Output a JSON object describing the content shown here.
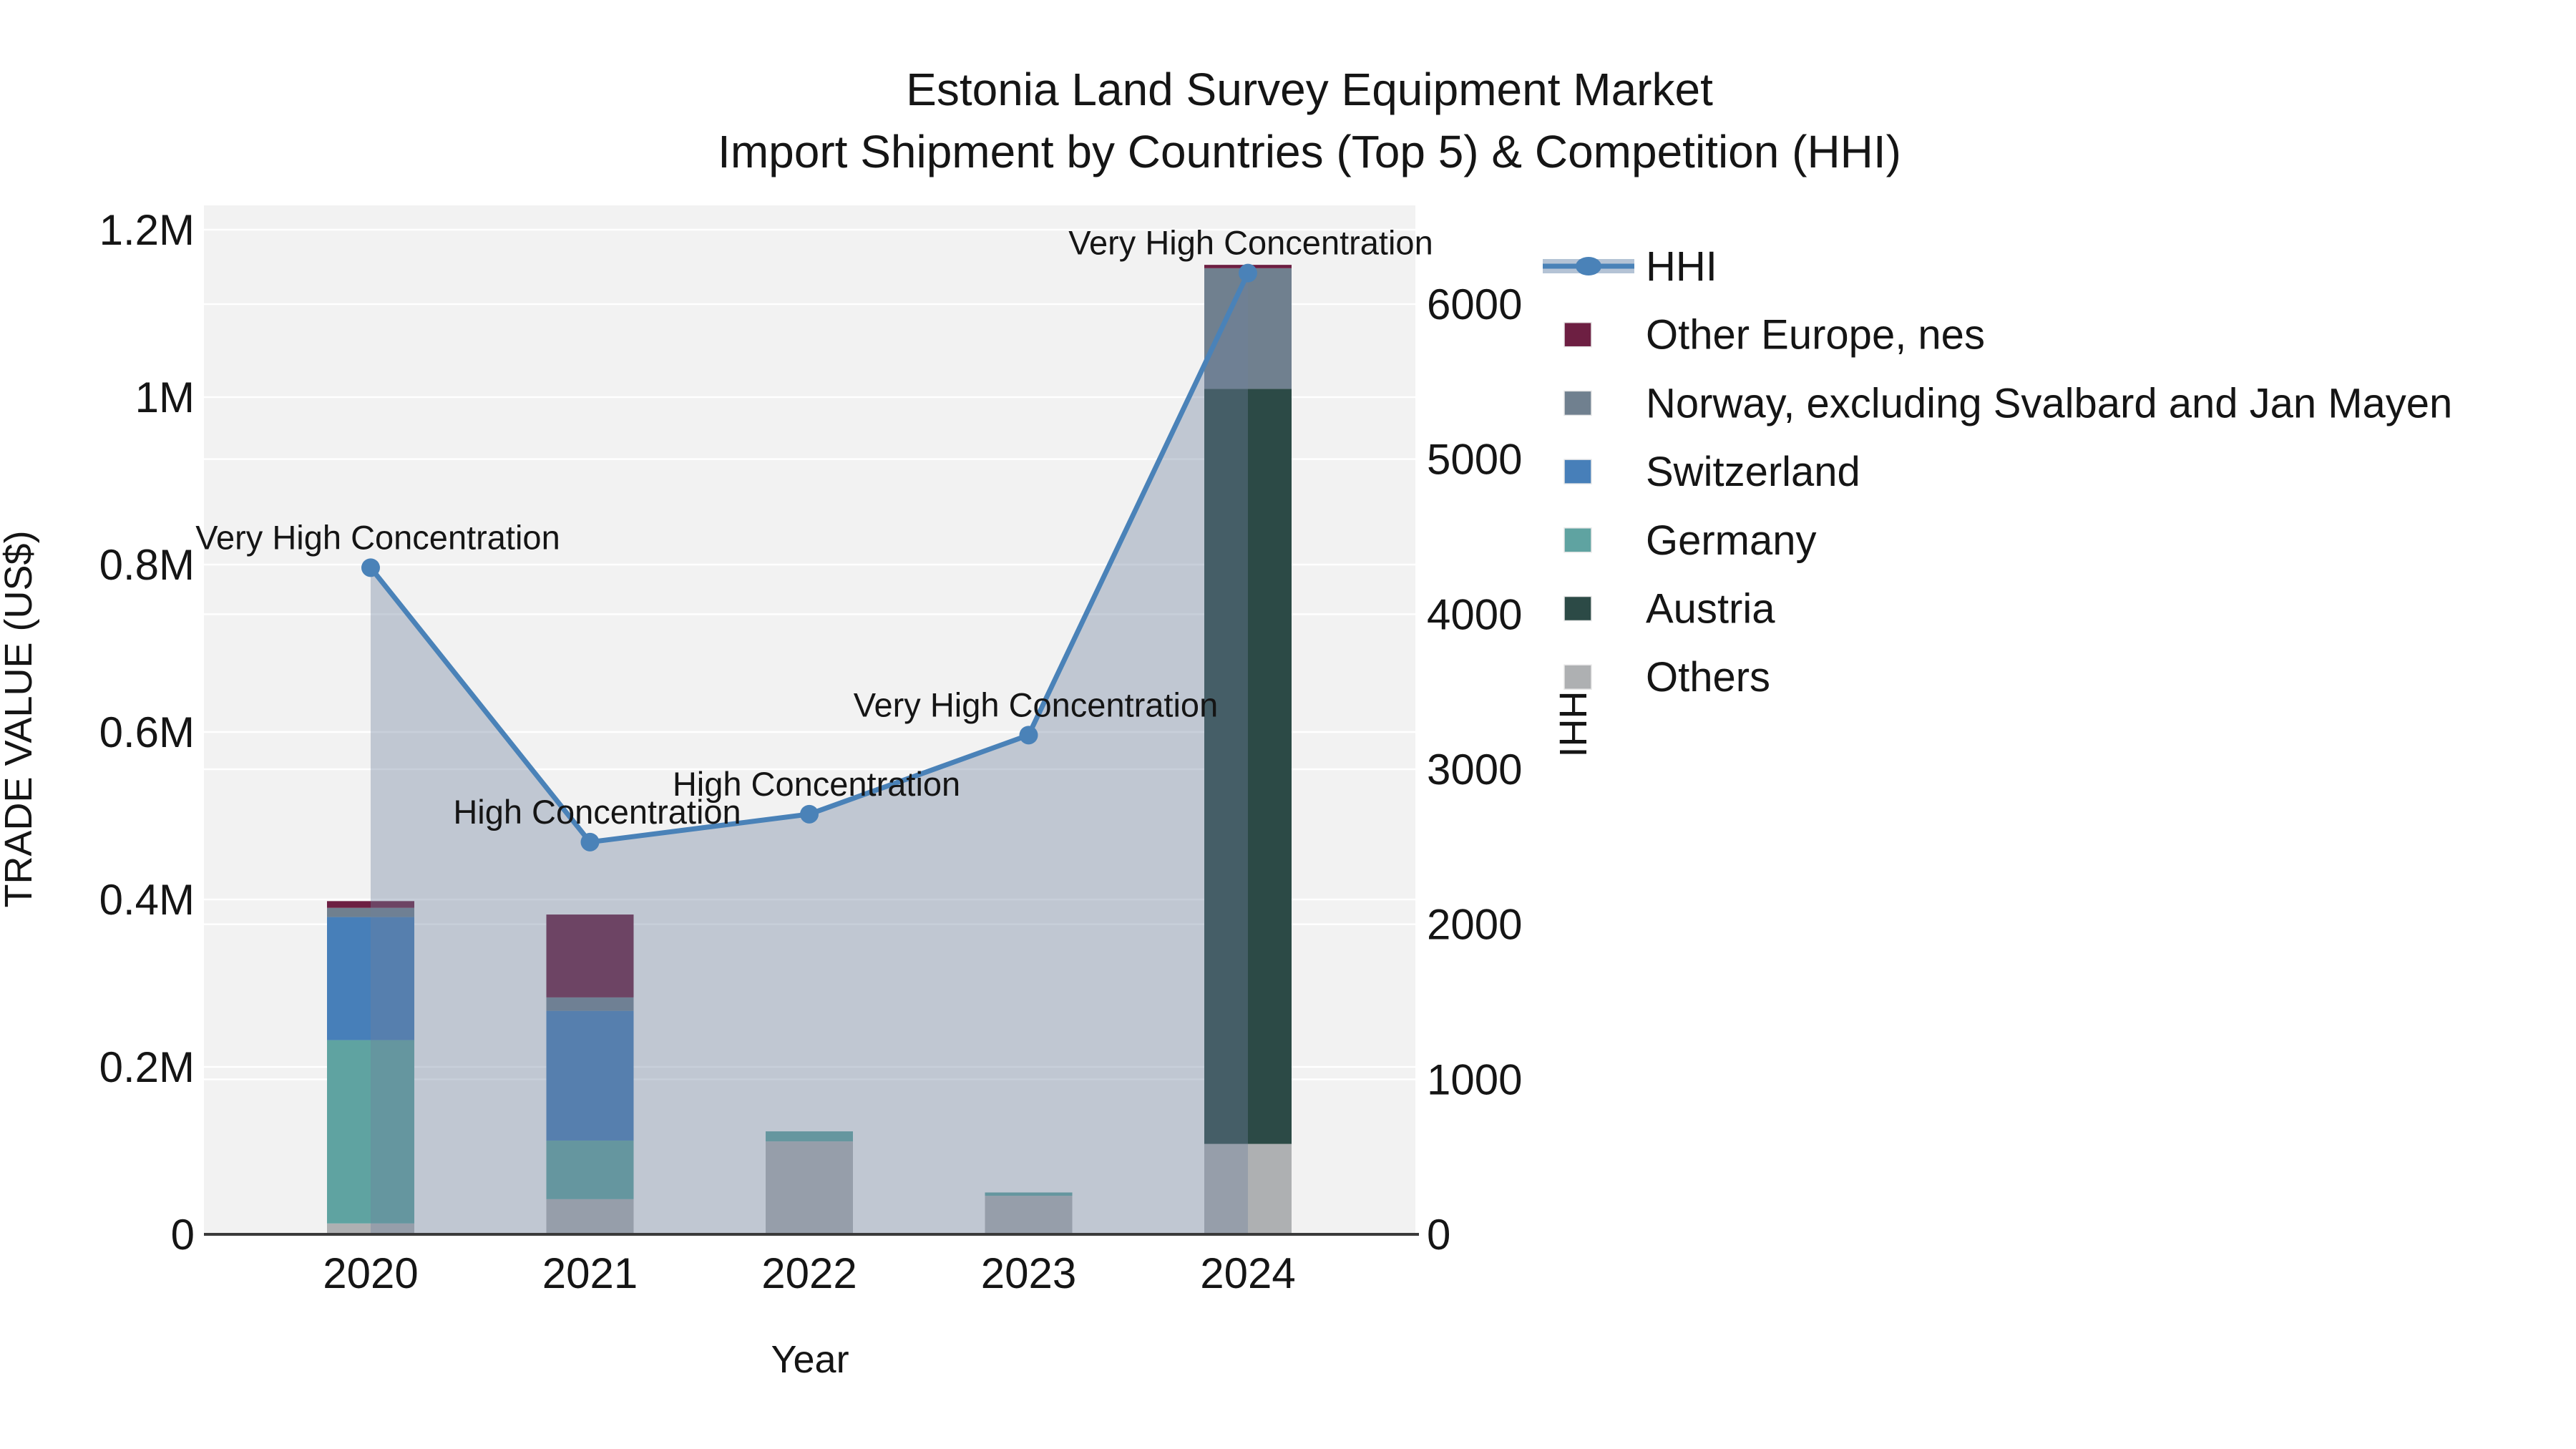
{
  "title": {
    "line1": "Estonia Land Survey Equipment Market",
    "line2": "Import Shipment by Countries (Top 5) & Competition (HHI)"
  },
  "chart_data": {
    "type": "bar+line combo (stacked bars on left axis, HHI line with shaded area on right axis)",
    "x_label": "Year",
    "x_categories": [
      "2020",
      "2021",
      "2022",
      "2023",
      "2024"
    ],
    "left_axis": {
      "label": "TRADE VALUE (US$)",
      "min": 0,
      "max": 1200000,
      "tick_values": [
        0,
        200000,
        400000,
        600000,
        800000,
        1000000,
        1200000
      ],
      "tick_labels": [
        "0",
        "0.2M",
        "0.4M",
        "0.6M",
        "0.8M",
        "1M",
        "1.2M"
      ]
    },
    "right_axis": {
      "label": "HHI",
      "min": 0,
      "max": 6635,
      "tick_values": [
        0,
        1000,
        2000,
        3000,
        4000,
        5000,
        6000
      ],
      "tick_labels": [
        "0",
        "1000",
        "2000",
        "3000",
        "4000",
        "5000",
        "6000"
      ]
    },
    "bar_series_bottom_to_top": [
      {
        "name": "Others",
        "color": "#aeb0b2",
        "values": [
          13000,
          42000,
          111000,
          46000,
          108000
        ]
      },
      {
        "name": "Austria",
        "color": "#2c4a46",
        "values": [
          0,
          0,
          0,
          0,
          902000
        ]
      },
      {
        "name": "Germany",
        "color": "#5fa3a1",
        "values": [
          219000,
          70000,
          12000,
          4000,
          0
        ]
      },
      {
        "name": "Switzerland",
        "color": "#477fb9",
        "values": [
          147000,
          155000,
          0,
          0,
          0
        ]
      },
      {
        "name": "Norway, excluding Svalbard and Jan Mayen",
        "color": "#70808f",
        "values": [
          11000,
          16000,
          0,
          0,
          144000
        ]
      },
      {
        "name": "Other Europe, nes",
        "color": "#6d1f42",
        "values": [
          8000,
          99000,
          0,
          0,
          4000
        ]
      }
    ],
    "bar_totals": [
      398000,
      382000,
      123000,
      50000,
      1158000
    ],
    "hhi_line": {
      "name": "HHI",
      "color": "#4a82b8",
      "band_color": "#b4c3d5",
      "area_fill": "rgba(110,130,158,0.38)",
      "values": [
        4300,
        2530,
        2710,
        3220,
        6200
      ],
      "point_labels": [
        "Very High Concentration",
        "High Concentration",
        "High Concentration",
        "Very High Concentration",
        "Very High Concentration"
      ]
    },
    "legend_order": [
      "HHI",
      "Other Europe, nes",
      "Norway, excluding Svalbard and Jan Mayen",
      "Switzerland",
      "Germany",
      "Austria",
      "Others"
    ],
    "style": {
      "plot_bg": "#f2f2f2",
      "grid_color": "rgba(255,255,255,0.95)",
      "axis_line_color": "#3a3a3a",
      "text_color": "#151515"
    }
  }
}
